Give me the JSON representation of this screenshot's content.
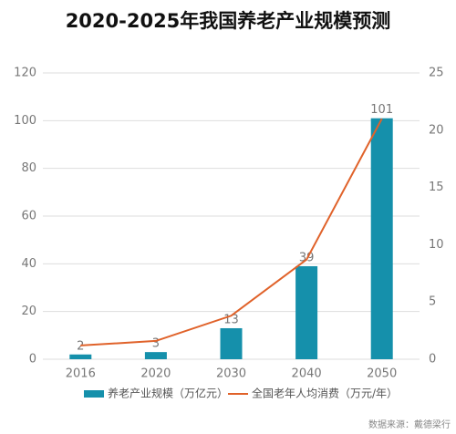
{
  "chart_data": {
    "type": "bar",
    "title": "2020-2025年我国养老产业规模预测",
    "categories": [
      "2016",
      "2020",
      "2030",
      "2040",
      "2050"
    ],
    "series": [
      {
        "name": "养老产业规模（万亿元）",
        "type": "bar",
        "color": "#1590ab",
        "values": [
          2,
          3,
          13,
          39,
          101
        ]
      },
      {
        "name": "全国老年人均消费（万元/年）",
        "type": "line",
        "axis": "y2",
        "color": "#e0622a",
        "values": [
          1.2,
          1.6,
          3.8,
          8.7,
          21
        ]
      }
    ],
    "ylim": [
      0,
      120
    ],
    "yticks": [
      0,
      20,
      40,
      60,
      80,
      100,
      120
    ],
    "y2lim": [
      0,
      25
    ],
    "y2ticks": [
      0,
      5,
      10,
      15,
      20,
      25
    ],
    "grid": true,
    "legend": "bottom",
    "source": "数据来源：戴德梁行"
  }
}
